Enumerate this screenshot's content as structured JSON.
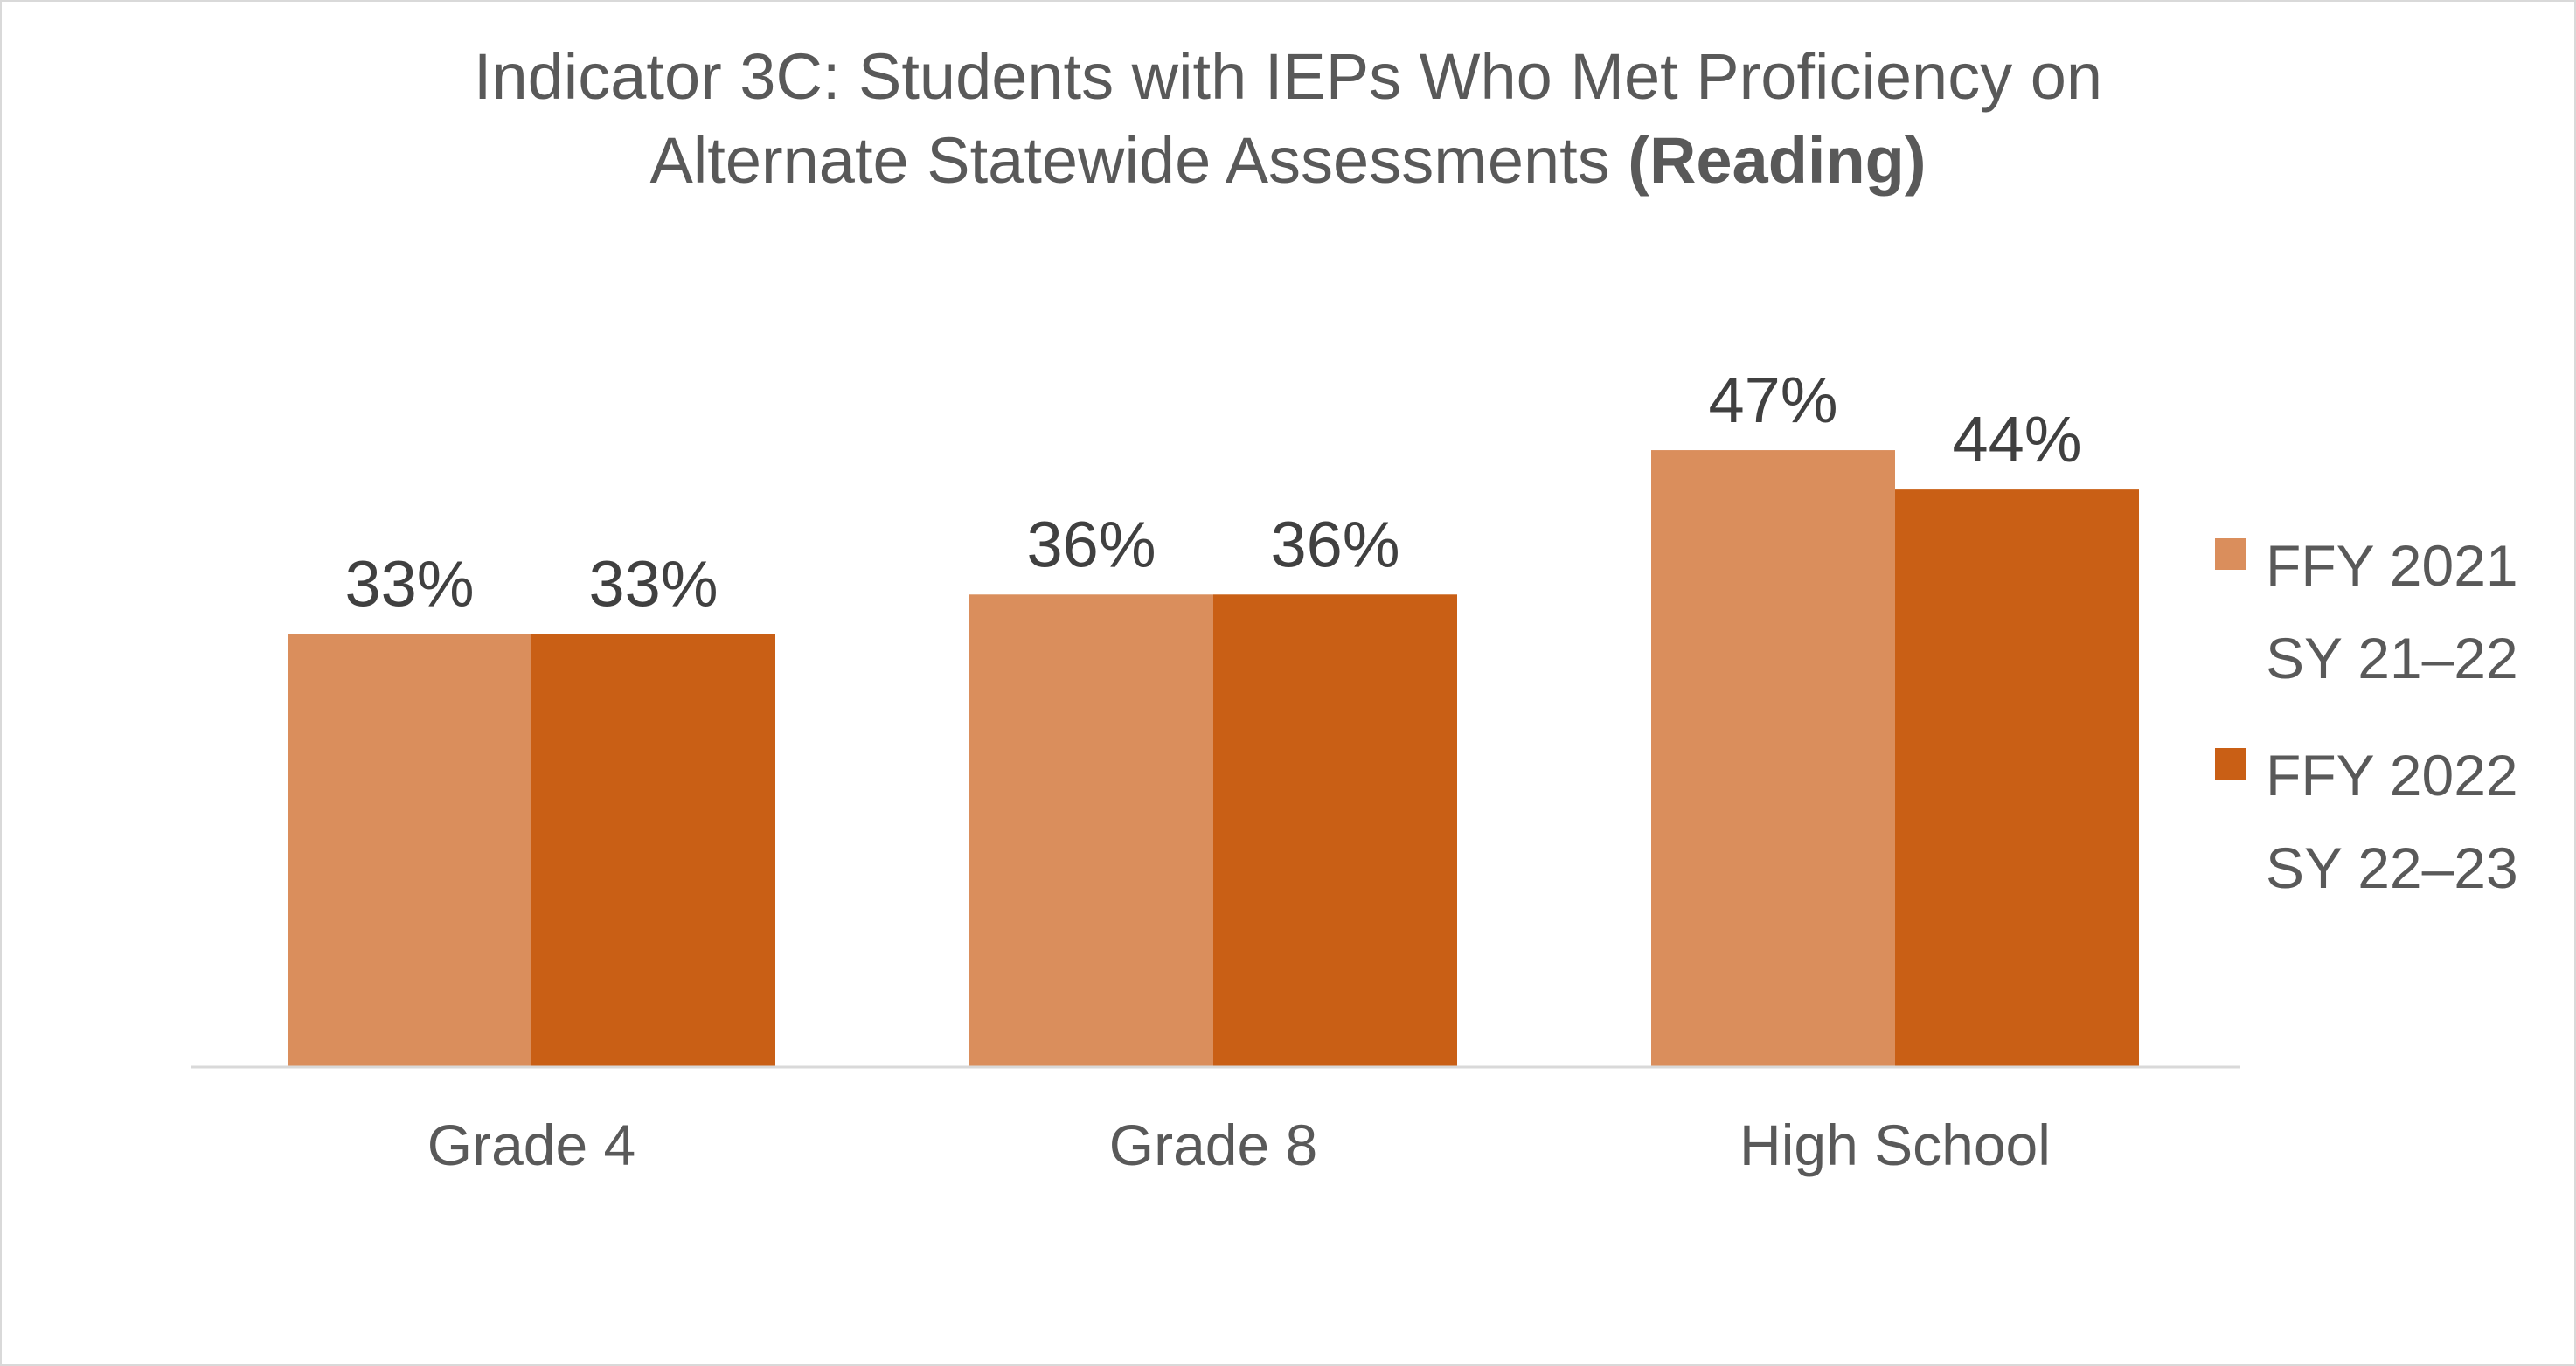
{
  "chart_data": {
    "type": "bar",
    "title": "Indicator 3C: Students with IEPs Who Met Proficiency on Alternate Statewide Assessments",
    "title_line1": "Indicator 3C: Students with IEPs Who Met Proficiency on",
    "title_line2": "Alternate Statewide Assessments",
    "title_bold": "(Reading)",
    "xlabel": "",
    "ylabel": "",
    "ylim": [
      0,
      100
    ],
    "grid": false,
    "legend_position": "right",
    "categories": [
      "Grade 4",
      "Grade 8",
      "High School"
    ],
    "series": [
      {
        "name": "FFY 2021\nSY 21–22",
        "color": "#DA8E5C",
        "values": [
          33,
          36,
          47
        ],
        "labels": [
          "33%",
          "36%",
          "47%"
        ]
      },
      {
        "name": "FFY 2022\nSY 22–23",
        "color": "#C95F15",
        "values": [
          33,
          36,
          44
        ],
        "labels": [
          "33%",
          "36%",
          "44%"
        ]
      }
    ]
  }
}
